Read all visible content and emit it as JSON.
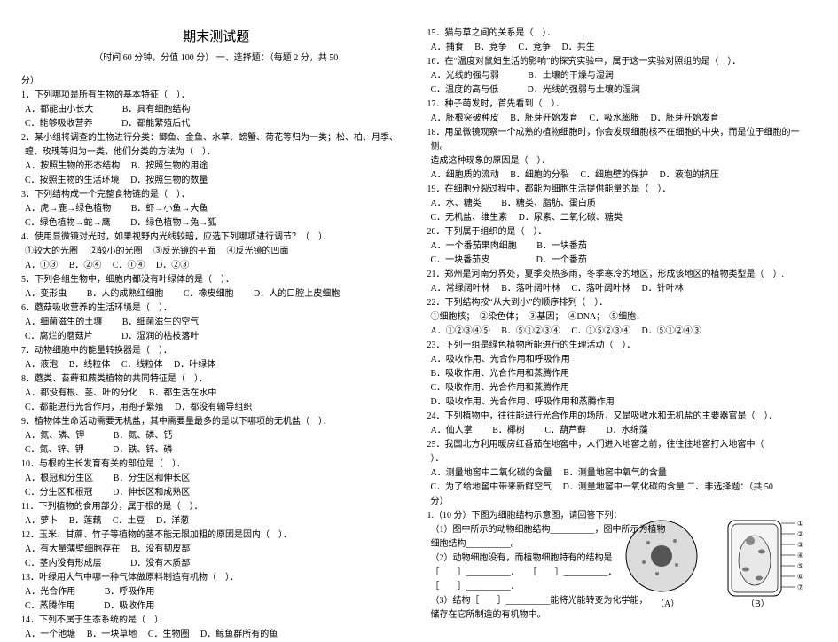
{
  "title": "期末测试题",
  "subtitle_left": "（时间 60 分钟，分值 100 分）",
  "subtitle_right": "一、选择题：（每题 2 分，共 50",
  "subtitle_tail": "分）",
  "diagram_label_a": "（A）",
  "diagram_label_b": "（B）",
  "diagram_leaders_b": [
    "①",
    "②",
    "③",
    "④",
    "⑤",
    "⑥",
    "⑦"
  ],
  "left": [
    {
      "q": "1．下列哪项是所有生物的基本特征（　）．"
    },
    {
      "opts": "A．都能由小长大 　　　B．具有细胞结构"
    },
    {
      "opts": "C．能够吸收营养 　　　D．都能繁殖后代"
    },
    {
      "q": "2．某小组将调查的生物进行分类：鲫鱼、金鱼、水草、螃蟹、荷花等归为一类；松、柏、月季、"
    },
    {
      "opts": "蝗、玫瑰等归为一类，他们分类的方法为（　）．"
    },
    {
      "opts": "A．按照生物的形态结构 　B．按照生物的用途"
    },
    {
      "opts": "C．按照生物的生活环境 　D．按照生物的数量"
    },
    {
      "q": "3．下列结构成一个完整食物链的是（　）．"
    },
    {
      "opts": "A．虎→鹿→绿色植物 　　B．虾→小鱼→大鱼"
    },
    {
      "opts": "C．绿色植物→蛇→鹰 　　D．绿色植物→兔→狐"
    },
    {
      "q": "4．使用显微镜对光时，如果视野内光线较暗，应选下列哪项进行调节？（　）．"
    },
    {
      "opts": "①较大的光圈 　②较小的光圈 　③反光镜的平面 　④反光镜的凹面"
    },
    {
      "opts": "A．①③ 　B．②④ 　C．①④ 　D．②③"
    },
    {
      "q": "5．下列各组生物中，细胞内都没有叶绿体的是（　）．"
    },
    {
      "opts": "A．变形虫 　　B．人的成熟红细胞 　　C．橡皮细胞 　　D．人的口腔上皮细胞"
    },
    {
      "q": "6．蘑菇吸收营养的生活环境是（　）．"
    },
    {
      "opts": "A．细菌滋生的土壤 　　B．细菌滋生的空气"
    },
    {
      "opts": "C．腐烂的蘑菇片 　　　D．湿润的枯枝落叶"
    },
    {
      "q": "7．动物细胞中的能量转换器是（　）．"
    },
    {
      "opts": "A．液泡 　B．线粒体 　C．线粒体 　D．叶绿体"
    },
    {
      "q": "8．蘑类、苔藓和蕨类植物的共同特征是（　）．"
    },
    {
      "opts": "A．都没有根、茎、叶的分化 　B．都生活在水中"
    },
    {
      "opts": "C．都能进行光合作用，用孢子繁殖 　D．都没有输导组织"
    },
    {
      "q": "9．植物体生命活动需要无机盐，其中需要量最多的是以下哪项的无机盐（　）．"
    },
    {
      "opts": "A．氮、磷、钾 　　　B．氮、磷、钙"
    },
    {
      "opts": "C．氮、锌、钾 　　　D．铁、锌、磷"
    },
    {
      "q": "10．与根的生长发育有关的部位是（　）．"
    },
    {
      "opts": "A．根冠和分生区 　　B．分生区和伸长区"
    },
    {
      "opts": "C．分生区和根冠 　　D．伸长区和成熟区"
    },
    {
      "q": "11．下列植物的食用部分，属于根的是（　）．"
    },
    {
      "opts": "A．萝卜 　B．莲藕 　C．土豆 　D．洋葱"
    },
    {
      "q": "12．玉米、甘蔗、竹子等植物的茎不能无限加粗的原因是因内（　）．"
    },
    {
      "opts": "A．有大量薄壁细胞存在 　B．没有韧皮部"
    },
    {
      "opts": "C．茎内没有形成层 　　　D．没有木质部"
    },
    {
      "q": "13．叶绿用大气中哪一种气体做原料制造有机物（　）．"
    },
    {
      "opts": "A．光合作用 　　　B．呼吸作用"
    },
    {
      "opts": "C．蒸腾作用 　　　D．吸收作用"
    },
    {
      "q": "14．下列不属于生态系统的是（　）．"
    },
    {
      "opts": "A．一个池塘 　B．一块草地 　C．生物圈 　D．鲸鱼群所有的鱼"
    }
  ],
  "right": [
    {
      "q": "15．猫与草之间的关系是（　）．"
    },
    {
      "opts": "A．捕食 　B．竞争 　C．竞争 　D．共生"
    },
    {
      "q": "16．在“温度对鼠妇生活的影响”的探究实验中，属于这一实验对照组的是（　）．"
    },
    {
      "opts": "A．光线的强与弱 　　　B．土壤的干燥与湿润"
    },
    {
      "opts": "C．温度的高与低 　　　D．光线的强弱与土壤的湿润"
    },
    {
      "q": "17．种子萌发时，首先看到（　）．"
    },
    {
      "opts": "A．胚根突破种皮 　B．胚芽开始发育 　C．吸水膨胀 　D．胚芽开始发育"
    },
    {
      "q": "18．用显微镜观察一个成熟的植物细胞时，你会发现细胞核不在细胞的中央，而是位于细胞的一"
    },
    {
      "opts": "侧。"
    },
    {
      "opts": "造成这种现象的原因是（　）．"
    },
    {
      "opts": "A．细胞质的流动 　B．细胞的分裂 　C．细胞壁的保护 　D．液泡的挤压"
    },
    {
      "q": "19．在细胞分裂过程中，都能为细胞生活提供能量的是（　）．"
    },
    {
      "opts": "A．水、糖类 　　B．糖类、脂肪、蛋白质"
    },
    {
      "opts": "C．无机盐、维生素 　D．尿素、二氧化碳、糖类"
    },
    {
      "q": "20．下列属于组织的是（　）．"
    },
    {
      "opts": "A．一个番茄果肉细胞 　　B．一块番茄"
    },
    {
      "opts": "C．一块番茄皮 　　　　　D．一个番茄"
    },
    {
      "q": "21．郑州是河南分界处，夏季炎热多雨，冬季寒冷的地区，形成该地区的植物类型是（　）."
    },
    {
      "opts": "A．常绿阔叶林 　B．落叶阔叶林 　C．落叶阔叶林 　D．针叶林"
    },
    {
      "q": "22．下列结构按“从大到小”的顺序排列（　）．"
    },
    {
      "opts": "①细胞核；　②染色体；　③基因；　④DNA；　⑤细胞．"
    },
    {
      "opts": "A．①②③④⑤ 　B．⑤①②③④ 　C．①⑤②③④ 　D．⑤①②④③"
    },
    {
      "q": "23．下列一组是绿色植物所能进行的生理活动（　）．"
    },
    {
      "opts": "A．吸收作用、光合作用和呼吸作用"
    },
    {
      "opts": "B．吸收作用、光合作用和蒸腾作用"
    },
    {
      "opts": "C．吸收作用、光合作用和蒸腾作用"
    },
    {
      "opts": "D．吸收作用、光合作用、呼吸作用和蒸腾作用"
    },
    {
      "q": "24．下列植物中，往往能进行光合作用的场所，又是吸收水和无机盐的主要器官是（　）．"
    },
    {
      "opts": "A．仙人掌 　　B．椰树 　　C．葫芦藓 　　D．水绵藻"
    },
    {
      "q": "25．我国北方利用暖房红番茄在地窖中，人们进入地窖之前，往往往地窖打入地窖中（　"
    },
    {
      "opts": "）．"
    },
    {
      "opts": "A．测量地窖中二氧化碳的含量 　B．测量地窖中氧气的含量"
    },
    {
      "opts": "C．为了给地窖中带来新鲜空气 　D．测量地窖中一氧化碳的含量 二、非选择题：（共 50"
    },
    {
      "opts": "分）"
    },
    {
      "q": "1.（10 分）下图为细胞结构示意图，请回答下列："
    },
    {
      "opts": "（1）图中所示的动物细胞结构__________，图中所示为植物"
    },
    {
      "opts": "细胞结构__________。"
    },
    {
      "opts": "（2）动物细胞没有，而植物细胞特有的结构是"
    },
    {
      "opts": "［　　］__________．　　［　　］__________．"
    },
    {
      "opts": "［　　］__________．"
    },
    {
      "opts": "（3）结构［　　］__________能将光能转变为化学能，"
    },
    {
      "opts": "储存在它所制造的有机物中。"
    }
  ]
}
